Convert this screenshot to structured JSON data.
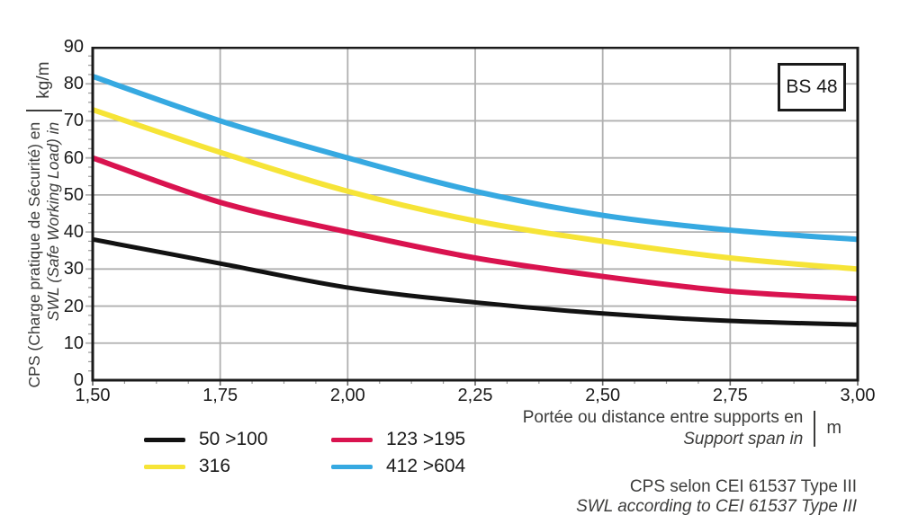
{
  "title_box": {
    "label": "BS 48"
  },
  "y_axis": {
    "title_fr": "CPS (Charge pratique de Sécurité) en",
    "title_en": "SWL (Safe Working Load) in",
    "unit": "kg/m",
    "ticks": [
      0,
      10,
      20,
      30,
      40,
      50,
      60,
      70,
      80,
      90
    ]
  },
  "x_axis": {
    "title_fr": "Portée ou distance entre supports en",
    "title_en": "Support span in",
    "unit": "m",
    "tick_labels": [
      "1,50",
      "1,75",
      "2,00",
      "2,25",
      "2,50",
      "2,75",
      "3,00"
    ]
  },
  "legend": {
    "items": [
      {
        "label": "50 >100",
        "color": "#121212"
      },
      {
        "label": "123 >195",
        "color": "#d9134f"
      },
      {
        "label": "316",
        "color": "#f6e437"
      },
      {
        "label": "412 >604",
        "color": "#36a9e1"
      }
    ]
  },
  "footer": {
    "line_fr": "CPS selon CEI 61537 Type III",
    "line_en": "SWL according to CEI 61537 Type III"
  },
  "colors": {
    "grid": "#b0b0b0",
    "frame": "#1a1a1a",
    "minor_tick": "#999999",
    "major_tick": "#666666",
    "text_dark": "#3c3c3b"
  },
  "chart_data": {
    "type": "line",
    "x": [
      1.5,
      1.75,
      2.0,
      2.25,
      2.5,
      2.75,
      3.0
    ],
    "series": [
      {
        "name": "50 >100",
        "color": "#121212",
        "values": [
          38,
          31.5,
          25,
          21,
          18,
          16,
          15
        ]
      },
      {
        "name": "123 >195",
        "color": "#d9134f",
        "values": [
          60,
          48,
          40,
          33,
          28,
          24,
          22
        ]
      },
      {
        "name": "316",
        "color": "#f6e437",
        "values": [
          73,
          61.5,
          51,
          43,
          37.5,
          33,
          30
        ]
      },
      {
        "name": "412 >604",
        "color": "#36a9e1",
        "values": [
          82,
          70,
          60,
          51,
          44.5,
          40.5,
          38
        ]
      }
    ],
    "xlim": [
      1.5,
      3.0
    ],
    "ylim": [
      0,
      90
    ],
    "xlabel": "Portée ou distance entre supports en / Support span in (m)",
    "ylabel": "CPS (Charge pratique de Sécurité) en / SWL (Safe Working Load) in (kg/m)",
    "grid": true,
    "legend_position": "bottom",
    "annotation": "BS 48"
  }
}
